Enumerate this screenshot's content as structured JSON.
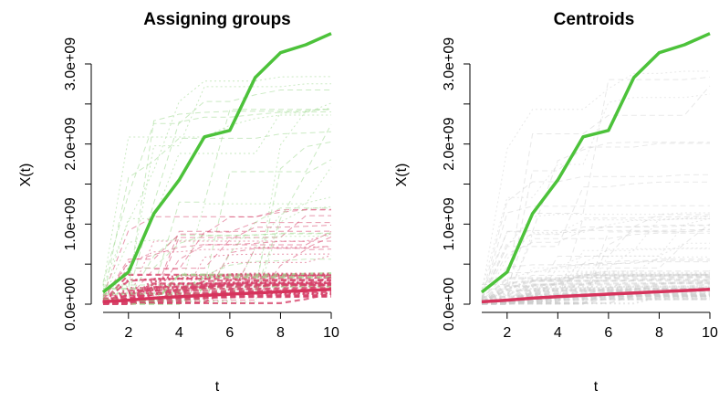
{
  "chart_data": [
    {
      "type": "line",
      "title": "Assigning groups",
      "xlabel": "t",
      "ylabel": "X(t)",
      "xlim": [
        1,
        10
      ],
      "ylim": [
        0,
        3000000000
      ],
      "x_ticks": [
        2,
        4,
        6,
        8,
        10
      ],
      "y_ticks": [
        0,
        1000000000,
        2000000000,
        3000000000
      ],
      "y_tick_labels": [
        "0.0e+00",
        "1.0e+09",
        "2.0e+09",
        "3.0e+09"
      ],
      "background_color_group_1": "#9fd98f",
      "background_color_group_2": "#d6426a",
      "series": [
        {
          "x": [
            1,
            2,
            3,
            4,
            5,
            6,
            7,
            8,
            9,
            10
          ],
          "values": [
            150000000,
            400000000,
            1130000000,
            1550000000,
            2090000000,
            2170000000,
            2830000000,
            3140000000,
            3240000000,
            3380000000
          ],
          "color": "#4cc23a"
        },
        {
          "x": [
            1,
            2,
            3,
            4,
            5,
            6,
            7,
            8,
            9,
            10
          ],
          "values": [
            30000000,
            50000000,
            75000000,
            95000000,
            110000000,
            125000000,
            140000000,
            155000000,
            170000000,
            185000000
          ],
          "color": "#d6335c"
        }
      ]
    },
    {
      "type": "line",
      "title": "Centroids",
      "xlabel": "t",
      "ylabel": "X(t)",
      "xlim": [
        1,
        10
      ],
      "ylim": [
        0,
        3000000000
      ],
      "x_ticks": [
        2,
        4,
        6,
        8,
        10
      ],
      "y_ticks": [
        0,
        1000000000,
        2000000000,
        3000000000
      ],
      "y_tick_labels": [
        "0.0e+00",
        "1.0e+09",
        "2.0e+09",
        "3.0e+09"
      ],
      "background_color": "#cccccc",
      "series": [
        {
          "x": [
            1,
            2,
            3,
            4,
            5,
            6,
            7,
            8,
            9,
            10
          ],
          "values": [
            150000000,
            400000000,
            1130000000,
            1550000000,
            2090000000,
            2170000000,
            2830000000,
            3140000000,
            3240000000,
            3380000000
          ],
          "color": "#4cc23a"
        },
        {
          "x": [
            1,
            2,
            3,
            4,
            5,
            6,
            7,
            8,
            9,
            10
          ],
          "values": [
            30000000,
            50000000,
            75000000,
            95000000,
            110000000,
            125000000,
            140000000,
            155000000,
            170000000,
            185000000
          ],
          "color": "#d6335c"
        }
      ]
    }
  ]
}
